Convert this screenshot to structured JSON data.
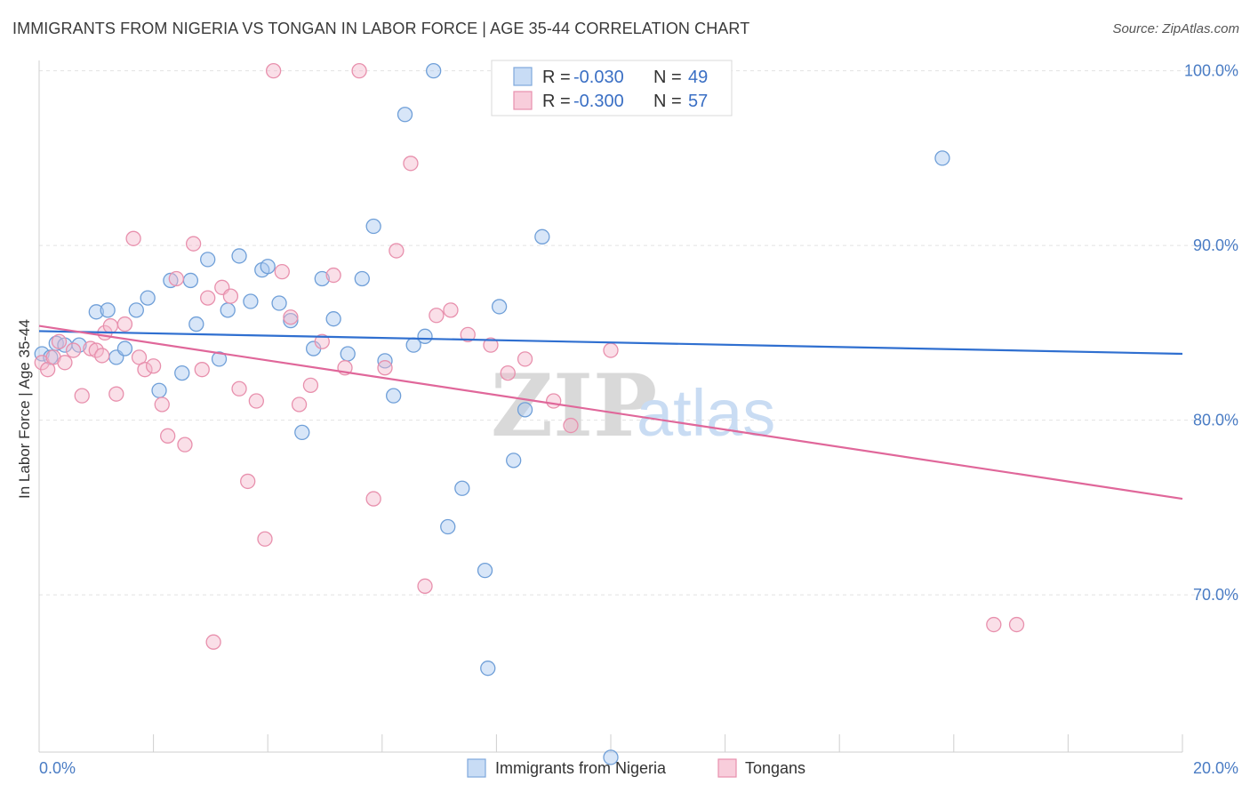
{
  "title": "IMMIGRANTS FROM NIGERIA VS TONGAN IN LABOR FORCE | AGE 35-44 CORRELATION CHART",
  "source": "Source: ZipAtlas.com",
  "watermark": {
    "zip": "ZIP",
    "atlas": "atlas"
  },
  "colors": {
    "blue_fill": "#a9c8ef",
    "blue_stroke": "#6f9fd8",
    "blue_line": "#2f6fd0",
    "pink_fill": "#f5b8cc",
    "pink_stroke": "#e890ad",
    "pink_line": "#e0679a",
    "grid": "#e2e2e2",
    "tick_label": "#4a7cc4"
  },
  "legend": {
    "entries": [
      {
        "r_label": "R =",
        "r_value": "-0.030",
        "n_label": "N =",
        "n_value": "49"
      },
      {
        "r_label": "R =",
        "r_value": "-0.300",
        "n_label": "N =",
        "n_value": "57"
      }
    ]
  },
  "bottom_legend": [
    "Immigrants from Nigeria",
    "Tongans"
  ],
  "chart_data": {
    "type": "scatter",
    "title": "IMMIGRANTS FROM NIGERIA VS TONGAN IN LABOR FORCE | AGE 35-44 CORRELATION CHART",
    "xlabel": "",
    "ylabel": "In Labor Force | Age 35-44",
    "xlim": [
      0,
      20
    ],
    "ylim": [
      61,
      101
    ],
    "x_tick_labels": [
      "0.0%",
      "20.0%"
    ],
    "y_ticks": [
      70,
      80,
      90,
      100
    ],
    "y_tick_labels": [
      "70.0%",
      "80.0%",
      "90.0%",
      "100.0%"
    ],
    "grid": true,
    "legend_position": "top-center",
    "series": [
      {
        "name": "Immigrants from Nigeria",
        "r": -0.03,
        "n": 49,
        "trend": [
          [
            0,
            85.1
          ],
          [
            20,
            83.8
          ]
        ],
        "points": [
          [
            0.05,
            83.8
          ],
          [
            0.2,
            83.6
          ],
          [
            0.3,
            84.4
          ],
          [
            0.45,
            84.3
          ],
          [
            0.7,
            84.3
          ],
          [
            1.0,
            86.2
          ],
          [
            1.2,
            86.3
          ],
          [
            1.35,
            83.6
          ],
          [
            1.5,
            84.1
          ],
          [
            1.7,
            86.3
          ],
          [
            1.9,
            87.0
          ],
          [
            2.1,
            81.7
          ],
          [
            2.3,
            88.0
          ],
          [
            2.5,
            82.7
          ],
          [
            2.65,
            88.0
          ],
          [
            2.75,
            85.5
          ],
          [
            2.95,
            89.2
          ],
          [
            3.15,
            83.5
          ],
          [
            3.3,
            86.3
          ],
          [
            3.5,
            89.4
          ],
          [
            3.7,
            86.8
          ],
          [
            3.9,
            88.6
          ],
          [
            4.0,
            88.8
          ],
          [
            4.2,
            86.7
          ],
          [
            4.4,
            85.7
          ],
          [
            4.6,
            79.3
          ],
          [
            4.8,
            84.1
          ],
          [
            4.95,
            88.1
          ],
          [
            5.15,
            85.8
          ],
          [
            5.4,
            83.8
          ],
          [
            5.65,
            88.1
          ],
          [
            5.85,
            91.1
          ],
          [
            6.05,
            83.4
          ],
          [
            6.2,
            81.4
          ],
          [
            6.4,
            97.5
          ],
          [
            6.55,
            84.3
          ],
          [
            6.75,
            84.8
          ],
          [
            6.9,
            100.0
          ],
          [
            7.15,
            73.9
          ],
          [
            7.4,
            76.1
          ],
          [
            7.8,
            71.4
          ],
          [
            7.85,
            65.8
          ],
          [
            8.05,
            86.5
          ],
          [
            8.3,
            77.7
          ],
          [
            8.5,
            80.6
          ],
          [
            8.8,
            90.5
          ],
          [
            10.0,
            60.7
          ],
          [
            11.9,
            100.0
          ],
          [
            15.8,
            95.0
          ]
        ]
      },
      {
        "name": "Tongans",
        "r": -0.3,
        "n": 57,
        "trend": [
          [
            0,
            85.4
          ],
          [
            20,
            75.5
          ]
        ],
        "points": [
          [
            0.05,
            83.3
          ],
          [
            0.15,
            82.9
          ],
          [
            0.25,
            83.6
          ],
          [
            0.35,
            84.5
          ],
          [
            0.45,
            83.3
          ],
          [
            0.6,
            84.0
          ],
          [
            0.75,
            81.4
          ],
          [
            0.9,
            84.1
          ],
          [
            1.0,
            84.0
          ],
          [
            1.1,
            83.7
          ],
          [
            1.15,
            85.0
          ],
          [
            1.25,
            85.4
          ],
          [
            1.35,
            81.5
          ],
          [
            1.5,
            85.5
          ],
          [
            1.65,
            90.4
          ],
          [
            1.75,
            83.6
          ],
          [
            1.85,
            82.9
          ],
          [
            2.0,
            83.1
          ],
          [
            2.15,
            80.9
          ],
          [
            2.25,
            79.1
          ],
          [
            2.4,
            88.1
          ],
          [
            2.55,
            78.6
          ],
          [
            2.7,
            90.1
          ],
          [
            2.85,
            82.9
          ],
          [
            2.95,
            87.0
          ],
          [
            3.05,
            67.3
          ],
          [
            3.2,
            87.6
          ],
          [
            3.35,
            87.1
          ],
          [
            3.5,
            81.8
          ],
          [
            3.65,
            76.5
          ],
          [
            3.8,
            81.1
          ],
          [
            3.95,
            73.2
          ],
          [
            4.1,
            100.0
          ],
          [
            4.25,
            88.5
          ],
          [
            4.4,
            85.9
          ],
          [
            4.55,
            80.9
          ],
          [
            4.75,
            82.0
          ],
          [
            4.95,
            84.5
          ],
          [
            5.15,
            88.3
          ],
          [
            5.35,
            83.0
          ],
          [
            5.6,
            100.0
          ],
          [
            5.85,
            75.5
          ],
          [
            6.05,
            83.0
          ],
          [
            6.25,
            89.7
          ],
          [
            6.5,
            94.7
          ],
          [
            6.75,
            70.5
          ],
          [
            6.95,
            86.0
          ],
          [
            7.2,
            86.3
          ],
          [
            7.5,
            84.9
          ],
          [
            7.9,
            84.3
          ],
          [
            8.2,
            82.7
          ],
          [
            8.5,
            83.5
          ],
          [
            9.0,
            81.1
          ],
          [
            9.3,
            79.7
          ],
          [
            10.0,
            84.0
          ],
          [
            16.7,
            68.3
          ],
          [
            17.1,
            68.3
          ]
        ]
      }
    ]
  }
}
